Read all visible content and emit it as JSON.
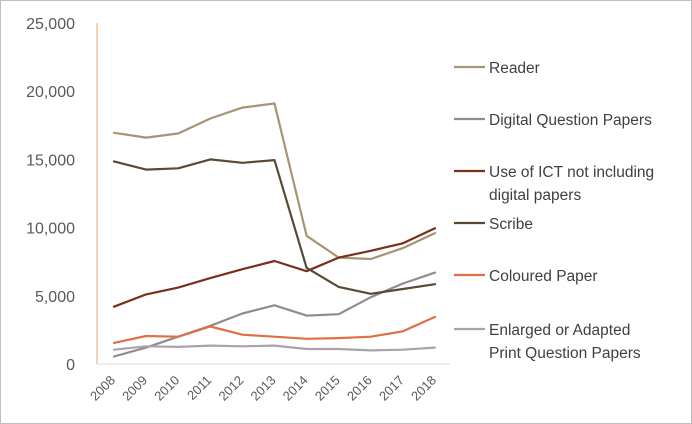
{
  "chart_data": {
    "type": "line",
    "title": "",
    "xlabel": "",
    "ylabel": "",
    "x": [
      "2008",
      "2009",
      "2010",
      "2011",
      "2012",
      "2013",
      "2014",
      "2015",
      "2016",
      "2017",
      "2018"
    ],
    "ylim": [
      0,
      25000
    ],
    "yticks": [
      0,
      5000,
      10000,
      15000,
      20000,
      25000
    ],
    "ytick_labels": [
      "0",
      "5,000",
      "10,000",
      "15,000",
      "20,000",
      "25,000"
    ],
    "grid": false,
    "legend_position": "right",
    "series": [
      {
        "name": "Reader",
        "color": "#a89474",
        "values": [
          16950,
          16600,
          16900,
          18000,
          18800,
          19100,
          9400,
          7800,
          7700,
          8500,
          9600
        ]
      },
      {
        "name": "Digital Question Papers",
        "color": "#948991",
        "values": [
          550,
          1200,
          2000,
          2800,
          3700,
          4300,
          3550,
          3650,
          4900,
          5900,
          6700
        ]
      },
      {
        "name": "Use of ICT not including digital papers",
        "label_lines": [
          "Use of ICT not including",
          "digital papers"
        ],
        "color": "#7a2e1e",
        "values": [
          4200,
          5100,
          5600,
          6300,
          6950,
          7550,
          6800,
          7800,
          8300,
          8850,
          9950
        ]
      },
      {
        "name": "Scribe",
        "color": "#5a4a35",
        "values": [
          14850,
          14250,
          14350,
          15000,
          14750,
          14950,
          7050,
          5650,
          5150,
          5500,
          5850
        ]
      },
      {
        "name": "Coloured Paper",
        "color": "#e06f45",
        "values": [
          1550,
          2050,
          2000,
          2750,
          2150,
          2000,
          1850,
          1900,
          2000,
          2400,
          3450
        ]
      },
      {
        "name": "Enlarged or Adapted Print Question Papers",
        "label_lines": [
          "Enlarged or Adapted",
          "Print Question Papers"
        ],
        "color": "#aaa3ad",
        "values": [
          1050,
          1300,
          1250,
          1350,
          1300,
          1350,
          1100,
          1100,
          1000,
          1050,
          1200
        ]
      }
    ]
  }
}
